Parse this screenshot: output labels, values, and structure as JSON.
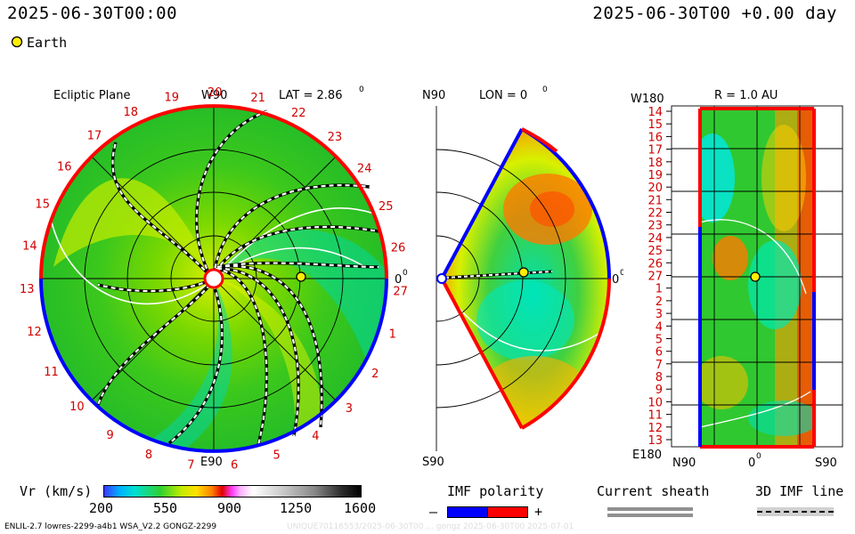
{
  "header": {
    "datetime_left": "2025-06-30T00:00",
    "datetime_right": "2025-06-30T00 +0.00 day"
  },
  "legend": {
    "earth_label": "Earth",
    "earth_color": "#ffee00"
  },
  "panels": {
    "ecliptic": {
      "title": "Ecliptic Plane",
      "lat_label": "LAT = 2.86",
      "lat_sup": "0",
      "top_label": "W90",
      "bottom_label": "E90",
      "right_label": "0",
      "right_sup": "0",
      "rotation_numbers": [
        "19",
        "20",
        "21",
        "22",
        "23",
        "24",
        "25",
        "26",
        "27",
        "1",
        "2",
        "3",
        "4",
        "5",
        "6",
        "7",
        "8",
        "9",
        "10",
        "11",
        "12",
        "13",
        "14",
        "15",
        "16",
        "17",
        "18"
      ]
    },
    "meridional": {
      "top_label": "N90",
      "bottom_label": "S90",
      "lon_label": "LON = 0",
      "lon_sup": "0",
      "right_label": "0",
      "right_sup": "0"
    },
    "map": {
      "title": "R = 1.0 AU",
      "top_left_label": "W180",
      "bottom_left_label": "E180",
      "x_labels": [
        "N90",
        "0",
        "S90"
      ],
      "x_sup": "0",
      "y_labels": [
        "14",
        "15",
        "16",
        "17",
        "18",
        "19",
        "20",
        "21",
        "22",
        "23",
        "24",
        "25",
        "26",
        "27",
        "1",
        "2",
        "3",
        "4",
        "5",
        "6",
        "7",
        "8",
        "9",
        "10",
        "11",
        "12",
        "13"
      ]
    }
  },
  "colorbar": {
    "label": "Vr (km/s)",
    "ticks": [
      "200",
      "550",
      "900",
      "1250",
      "1600"
    ]
  },
  "imf": {
    "label": "IMF polarity",
    "minus": "–",
    "plus": "+",
    "neg_color": "#0000ff",
    "pos_color": "#ff0000"
  },
  "sheath": {
    "label": "Current sheath"
  },
  "imf_line": {
    "label": "3D IMF line"
  },
  "footer": {
    "left": "ENLIL-2.7 lowres-2299-a4b1 WSA_V2.2 GONGZ-2299",
    "right": "UNIQUE70116553/2025-06-30T00 ... gongz 2025-06-30T00 2025-07-01"
  }
}
